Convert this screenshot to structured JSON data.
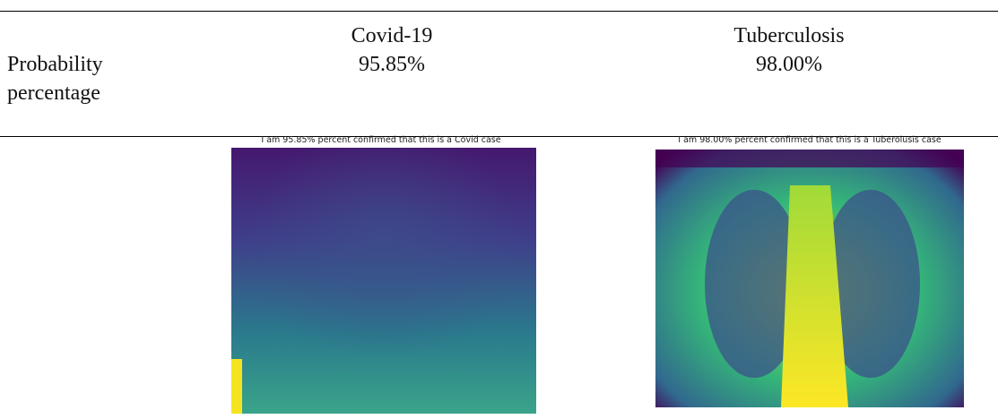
{
  "table": {
    "columns": [
      "Covid-19",
      "Tuberculosis"
    ],
    "rows": [
      {
        "label": "Probability percentage",
        "values": [
          "95.85%",
          "98.00%"
        ]
      }
    ],
    "images": [
      {
        "caption": "I am 95.85% percent confirmed that this is a Covid case"
      },
      {
        "caption": "I am 98.00% percent confirmed that this is a Tuberolusis case"
      }
    ]
  }
}
